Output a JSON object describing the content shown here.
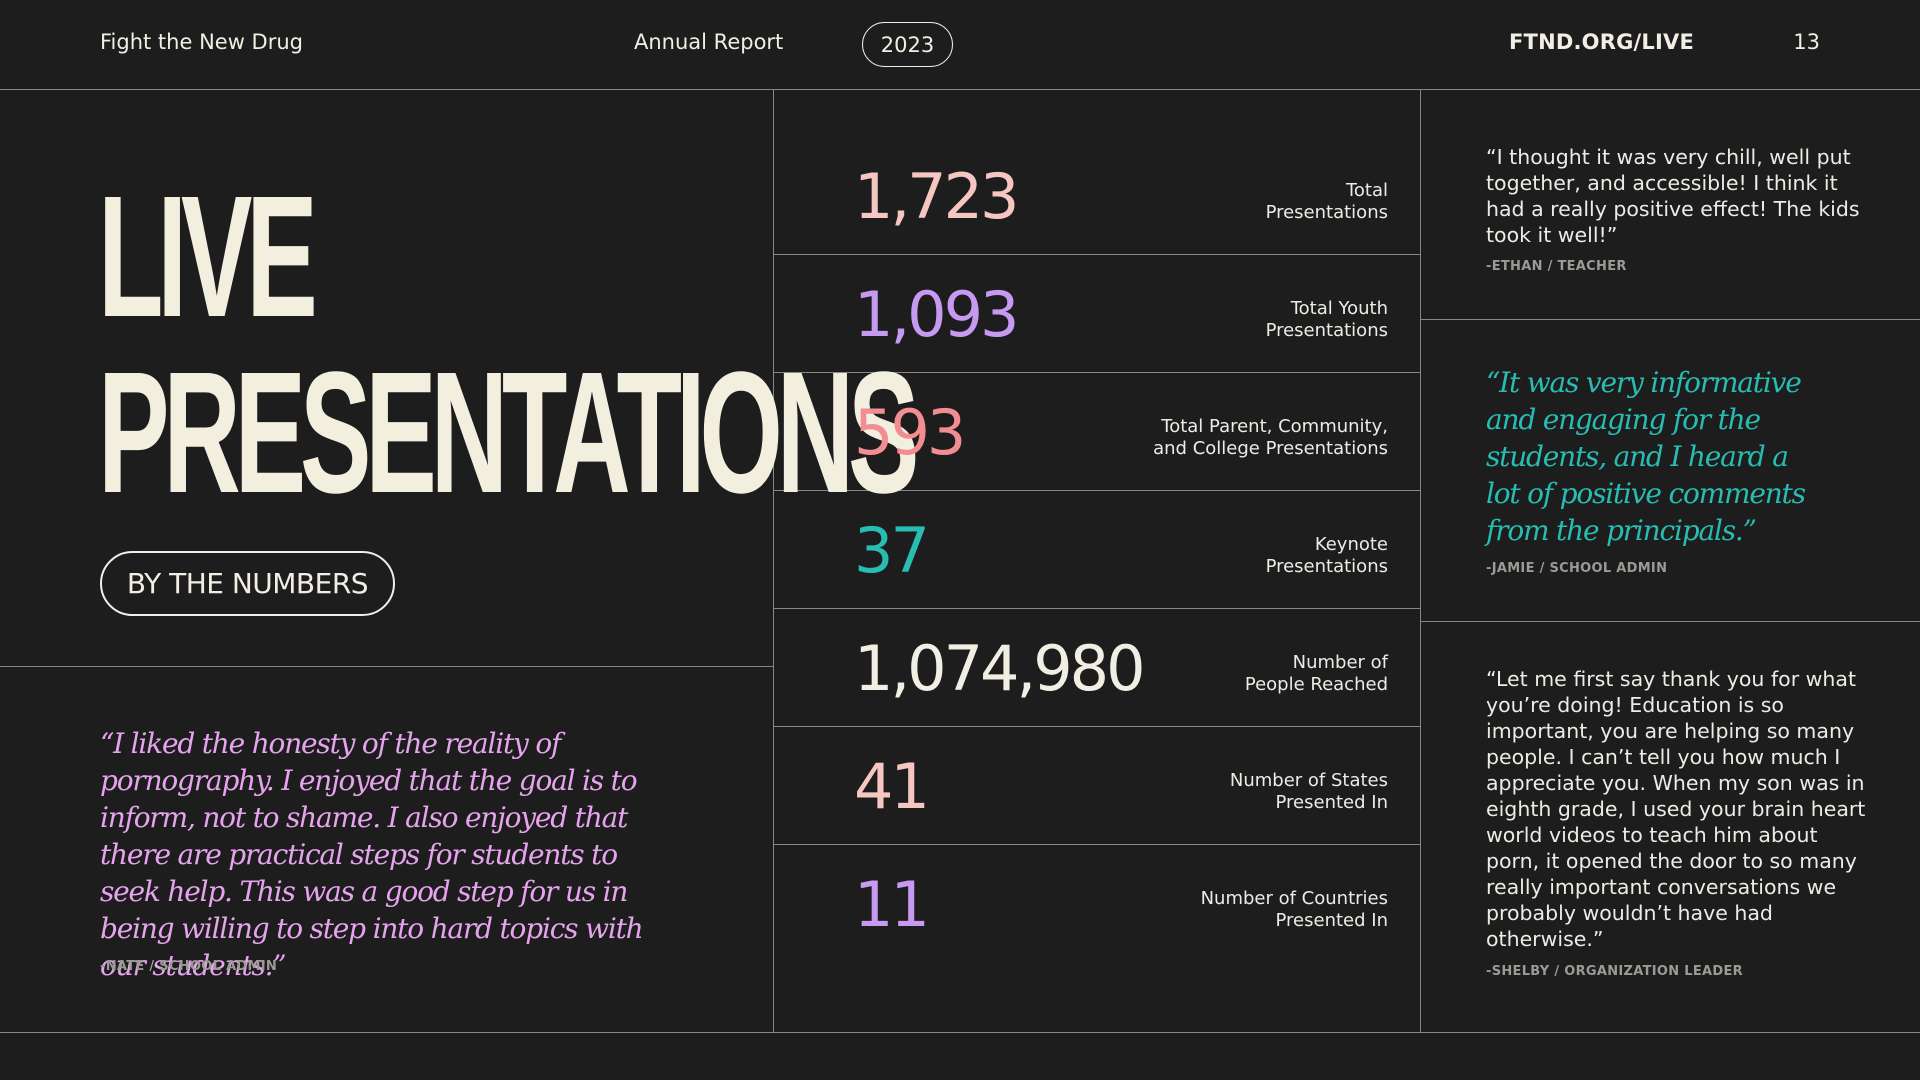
{
  "header": {
    "brand": "Fight the New Drug",
    "report": "Annual Report",
    "year": "2023",
    "url": "FTND.ORG/LIVE",
    "page_number": "13"
  },
  "title": {
    "line1": "LIVE",
    "line2": "PRESENTATIONS",
    "pill": "BY THE NUMBERS"
  },
  "stats": [
    {
      "value": "1,723",
      "label": "Total\nPresentations",
      "color": "#f6c6c2"
    },
    {
      "value": "1,093",
      "label": "Total Youth\nPresentations",
      "color": "#c79af2"
    },
    {
      "value": "593",
      "label": "Total Parent, Community,\nand College Presentations",
      "color": "#f28e92"
    },
    {
      "value": "37",
      "label": "Keynote\nPresentations",
      "color": "#27bdb2"
    },
    {
      "value": "1,074,980",
      "label": "Number of\nPeople Reached",
      "color": "#f1eee3"
    },
    {
      "value": "41",
      "label": "Number of States\nPresented In",
      "color": "#f6c6c2"
    },
    {
      "value": "11",
      "label": "Number of Countries\nPresented In",
      "color": "#c79af2"
    }
  ],
  "quotes": {
    "nate": {
      "text": "“I liked the honesty of the reality of pornography. I enjoyed that the goal is to inform, not to shame. I also enjoyed that there are practical steps for students to seek help. This was a good step for us in being willing to step into hard topics with our students.”",
      "attribution": "-NATE / SCHOOL ADMIN",
      "color": "#e6a4ee"
    },
    "ethan": {
      "text": "“I thought it was very chill, well put together, and accessible! I think it had a really positive effect! The kids took it well!”",
      "attribution": "-ETHAN / TEACHER"
    },
    "jamie": {
      "text": "“It was very informative and engaging for the students, and I heard a lot of positive comments from the principals.”",
      "attribution": "-JAMIE / SCHOOL ADMIN",
      "color": "#27bdb2"
    },
    "shelby": {
      "text": "“Let me first say thank you for what you’re doing! Education is so important, you are helping so many people. I can’t tell you how much I appreciate you. When my son was in eighth grade, I used your brain heart world videos to teach him about porn, it opened the door to so many really important conversations we probably wouldn’t have had otherwise.”",
      "attribution": "-SHELBY / ORGANIZATION LEADER"
    }
  }
}
